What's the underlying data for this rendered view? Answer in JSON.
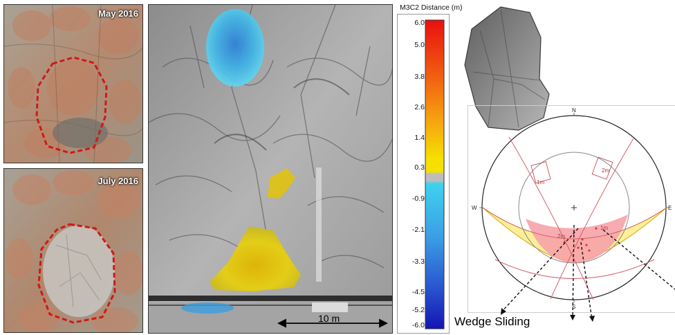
{
  "photos": [
    {
      "label": "May 2016"
    },
    {
      "label": "July 2016"
    }
  ],
  "colorbar": {
    "title": "M3C2 Distance (m)",
    "ticks": [
      "6.0",
      "5.0",
      "3.8",
      "2.6",
      "1.4",
      "0.3",
      "-0.9",
      "-2.1",
      "-3.3",
      "-4.5",
      "-5.2",
      "-6.0"
    ],
    "colors": {
      "max": "#e81010",
      "mid": "#f5e000",
      "zero": "#bdbdbd",
      "neg": "#3fd2ee",
      "min": "#1414b4"
    }
  },
  "model": {
    "scale_label": "10 m"
  },
  "stereonet": {
    "compass": {
      "n": "N",
      "s": "S",
      "e": "E",
      "w": "W"
    },
    "labels": [
      "1m",
      "2m",
      "2m",
      "1m"
    ],
    "wedge_label": "Wedge Sliding"
  }
}
